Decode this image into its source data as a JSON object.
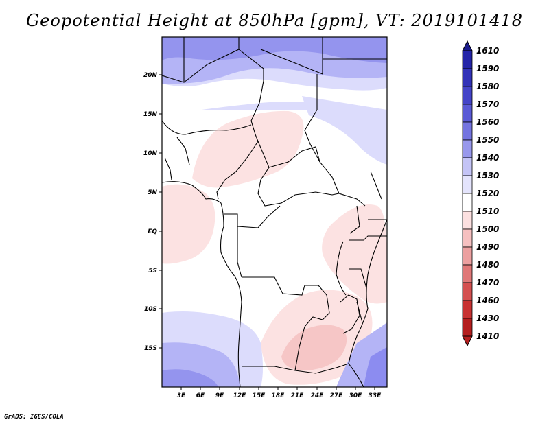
{
  "title": "Geopotential Height at 850hPa [gpm], VT: 2019101418",
  "credit": "GrADS: IGES/COLA",
  "map": {
    "lat_labels": [
      "20N",
      "15N",
      "10N",
      "5N",
      "EQ",
      "5S",
      "10S",
      "15S"
    ],
    "lon_labels": [
      "3E",
      "6E",
      "9E",
      "12E",
      "15E",
      "18E",
      "21E",
      "24E",
      "27E",
      "30E",
      "33E"
    ]
  },
  "colorbar": {
    "levels": [
      "1610",
      "1590",
      "1580",
      "1570",
      "1560",
      "1550",
      "1540",
      "1530",
      "1520",
      "1510",
      "1500",
      "1490",
      "1480",
      "1470",
      "1460",
      "1430",
      "1410"
    ],
    "colors": [
      "#1a1a8c",
      "#2424a8",
      "#3232b8",
      "#4444c8",
      "#5a5ad6",
      "#7474e0",
      "#9898ec",
      "#c4c4f6",
      "#e4e4fc",
      "#ffffff",
      "#fce0e0",
      "#f6c0c0",
      "#eca0a0",
      "#e07878",
      "#d45050",
      "#c83232",
      "#b41e1e"
    ]
  },
  "colors": {
    "blue_strong": "#8c8cf0",
    "blue_mid": "#b4b4f6",
    "blue_light": "#dcdcfc",
    "pink_light": "#fce2e2",
    "pink_mid": "#f6c6c6"
  }
}
